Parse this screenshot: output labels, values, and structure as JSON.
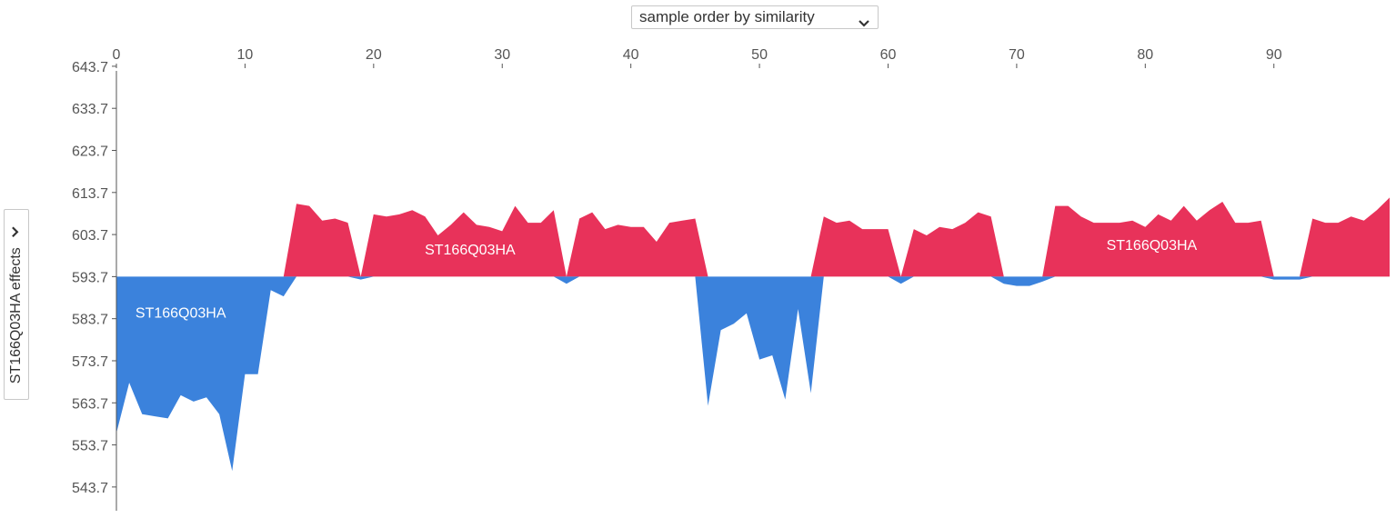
{
  "controls": {
    "x_order_select": "sample order by similarity",
    "y_effect_select": "ST166Q03HA effects"
  },
  "colors": {
    "positive": "#e8325a",
    "negative": "#3b82dc",
    "axis": "#555555"
  },
  "chart_data": {
    "type": "area",
    "title": "",
    "xlabel": "",
    "ylabel": "",
    "base_value": 593.7,
    "x_axis_position": "top",
    "x_ticks": [
      0,
      10,
      20,
      30,
      40,
      50,
      60,
      70,
      80,
      90
    ],
    "x_tick_labels": [
      "0",
      "10",
      "20",
      "30",
      "40",
      "50",
      "60",
      "70",
      "80",
      "90"
    ],
    "y_ticks": [
      543.7,
      553.7,
      563.7,
      573.7,
      583.7,
      593.7,
      603.7,
      613.7,
      623.7,
      633.7,
      643.7
    ],
    "y_tick_labels": [
      "543.7",
      "553.7",
      "563.7",
      "573.7",
      "583.7",
      "593.7",
      "603.7",
      "613.7",
      "623.7",
      "633.7",
      "643.7"
    ],
    "xlim": [
      0,
      99
    ],
    "ylim": [
      540,
      648
    ],
    "grid": false,
    "series": [
      {
        "feature": "ST166Q03HA",
        "x": [
          0,
          1,
          2,
          3,
          4,
          5,
          6,
          7,
          8,
          9,
          10,
          11,
          12,
          13,
          14,
          15,
          16,
          17,
          18,
          19,
          20,
          21,
          22,
          23,
          24,
          25,
          26,
          27,
          28,
          29,
          30,
          31,
          32,
          33,
          34,
          35,
          36,
          37,
          38,
          39,
          40,
          41,
          42,
          43,
          44,
          45,
          46,
          47,
          48,
          49,
          50,
          51,
          52,
          53,
          54,
          55,
          56,
          57,
          58,
          59,
          60,
          61,
          62,
          63,
          64,
          65,
          66,
          67,
          68,
          69,
          70,
          71,
          72,
          73,
          74,
          75,
          76,
          77,
          78,
          79,
          80,
          81,
          82,
          83,
          84,
          85,
          86,
          87,
          88,
          89,
          90,
          91,
          92,
          93,
          94,
          95,
          96,
          97,
          98,
          99
        ],
        "values": [
          556.5,
          568.5,
          561,
          560.5,
          560,
          565.5,
          564,
          565,
          561,
          547.5,
          570.5,
          570.5,
          590.5,
          589,
          611,
          610.5,
          607,
          607.5,
          606.5,
          593,
          608.5,
          608,
          608.5,
          609.5,
          608,
          603.5,
          606,
          609,
          606,
          605.5,
          604.5,
          610.5,
          606.5,
          606.5,
          609.5,
          592,
          607.5,
          609,
          605,
          606,
          605.5,
          605.5,
          602,
          606.5,
          607,
          607.5,
          563,
          581,
          582.5,
          585,
          574,
          575,
          564.5,
          586,
          566,
          608,
          606.5,
          607,
          605,
          605,
          605,
          592,
          605,
          603.5,
          605.5,
          605,
          606.5,
          609,
          608,
          592,
          591.5,
          591.5,
          592.5,
          610.5,
          610.5,
          608,
          606.5,
          606.5,
          606.5,
          607,
          605.5,
          608.5,
          607,
          610.5,
          607,
          609.5,
          611.5,
          606.5,
          606.5,
          607,
          593,
          593,
          593,
          607.5,
          606.5,
          606.5,
          608,
          607,
          609.5,
          612.5
        ]
      }
    ],
    "annotations": [
      {
        "text": "ST166Q03HA",
        "x": 5,
        "y": 584,
        "sign": "negative"
      },
      {
        "text": "ST166Q03HA",
        "x": 27.5,
        "y": 599,
        "sign": "positive"
      },
      {
        "text": "ST166Q03HA",
        "x": 80.5,
        "y": 600,
        "sign": "positive"
      }
    ]
  }
}
